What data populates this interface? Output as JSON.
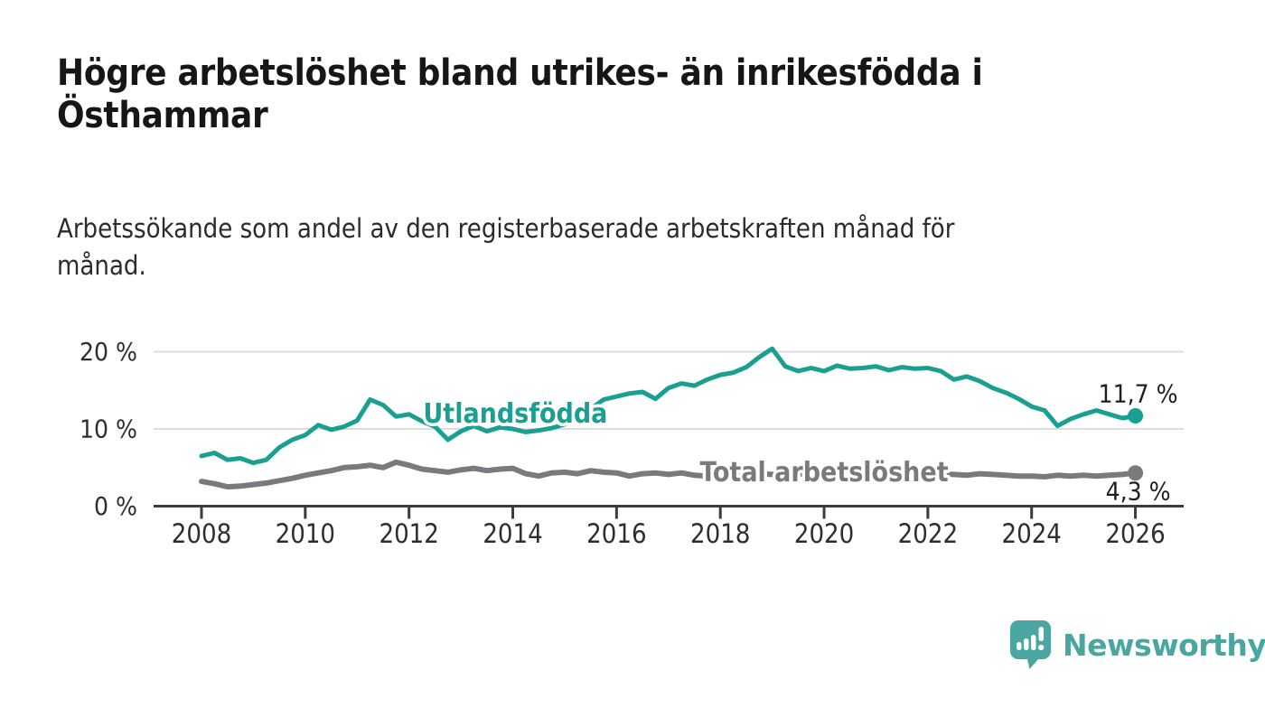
{
  "header": {
    "title": "Högre arbetslöshet bland utrikes- än inrikesfödda i Östhammar",
    "title_lines": [
      "Högre arbetslöshet bland utrikes- än inrikesfödda i",
      "Östhammar"
    ],
    "subtitle": "Arbetssökande som andel av den registerbaserade arbetskraften månad för månad.",
    "subtitle_lines": [
      "Arbetssökande som andel av den registerbaserade arbetskraften månad för",
      "månad."
    ]
  },
  "colors": {
    "accent_teal": "#1AA091",
    "line_gray": "#7A7A7E",
    "grid": "#DCDCDC",
    "axis": "#3C3C3C",
    "tick_text": "#2E2E2E",
    "annotation_text": "#1F1F1F",
    "logo_teal": "#4AA6A1"
  },
  "chart_data": {
    "type": "line",
    "title": "",
    "xlabel": "",
    "ylabel": "",
    "x_mode": "decimal_year",
    "x_start": 2008.0,
    "x_step": 0.25,
    "xlim": [
      2007.1,
      2026.9
    ],
    "ylim": [
      0,
      21.5
    ],
    "grid": "horizontal",
    "legend": "inline-labels-on-lines",
    "yticks": [
      {
        "value": 20,
        "label": "20 %"
      },
      {
        "value": 10,
        "label": "10 %"
      },
      {
        "value": 0,
        "label": "0 %"
      }
    ],
    "xticks": [
      {
        "value": 2008,
        "label": "2008"
      },
      {
        "value": 2010,
        "label": "2010"
      },
      {
        "value": 2012,
        "label": "2012"
      },
      {
        "value": 2014,
        "label": "2014"
      },
      {
        "value": 2016,
        "label": "2016"
      },
      {
        "value": 2018,
        "label": "2018"
      },
      {
        "value": 2020,
        "label": "2020"
      },
      {
        "value": 2022,
        "label": "2022"
      },
      {
        "value": 2024,
        "label": "2024"
      },
      {
        "value": 2026,
        "label": "2026"
      }
    ],
    "series": [
      {
        "name": "Utlandsfödda",
        "color": "#1AA091",
        "stroke_width": 5,
        "inline_label": {
          "text": "Utlandsfödda",
          "x": 2014.05,
          "y": 12.0
        },
        "end_dot": true,
        "end_value": 11.7,
        "end_label": "11,7 %",
        "end_label_pos": "above",
        "values": [
          6.5,
          6.9,
          6.0,
          6.2,
          5.6,
          6.0,
          7.6,
          8.6,
          9.2,
          10.5,
          9.9,
          10.3,
          11.1,
          13.8,
          13.1,
          11.6,
          11.9,
          11.0,
          10.3,
          8.6,
          9.7,
          10.4,
          9.7,
          10.2,
          10.0,
          9.6,
          9.8,
          10.1,
          10.6,
          11.4,
          12.6,
          13.8,
          14.2,
          14.6,
          14.8,
          13.9,
          15.3,
          15.9,
          15.6,
          16.4,
          17.0,
          17.3,
          18.0,
          19.3,
          20.4,
          18.1,
          17.5,
          17.9,
          17.5,
          18.2,
          17.8,
          17.9,
          18.1,
          17.6,
          18.0,
          17.8,
          17.9,
          17.5,
          16.4,
          16.8,
          16.2,
          15.3,
          14.7,
          13.9,
          12.9,
          12.4,
          10.4,
          11.3,
          11.9,
          12.4,
          11.9,
          11.4,
          11.7
        ]
      },
      {
        "name": "Total arbetslöshet",
        "color": "#7A7A7E",
        "stroke_width": 6,
        "inline_label": {
          "text": "Total arbetslöshet",
          "x": 2020.0,
          "y": 4.4
        },
        "end_dot": true,
        "end_value": 4.3,
        "end_label": "4,3 %",
        "end_label_pos": "below",
        "values": [
          3.2,
          2.9,
          2.5,
          2.6,
          2.8,
          3.0,
          3.3,
          3.6,
          4.0,
          4.3,
          4.6,
          5.0,
          5.1,
          5.3,
          5.0,
          5.7,
          5.3,
          4.8,
          4.6,
          4.4,
          4.7,
          4.9,
          4.6,
          4.8,
          4.9,
          4.2,
          3.9,
          4.3,
          4.4,
          4.2,
          4.6,
          4.4,
          4.3,
          3.9,
          4.2,
          4.3,
          4.1,
          4.3,
          4.0,
          3.9,
          4.1,
          3.9,
          4.0,
          4.2,
          4.1,
          4.0,
          4.2,
          4.1,
          4.3,
          4.8,
          4.6,
          4.5,
          4.6,
          4.4,
          4.3,
          4.4,
          4.3,
          4.2,
          4.1,
          4.0,
          4.2,
          4.1,
          4.0,
          3.9,
          3.9,
          3.8,
          4.0,
          3.9,
          4.0,
          3.9,
          4.0,
          4.1,
          4.3
        ]
      }
    ]
  },
  "footer": {
    "brand": "Newsworthy",
    "logo_icon": "newsworthy-bubble-barchart-icon"
  }
}
